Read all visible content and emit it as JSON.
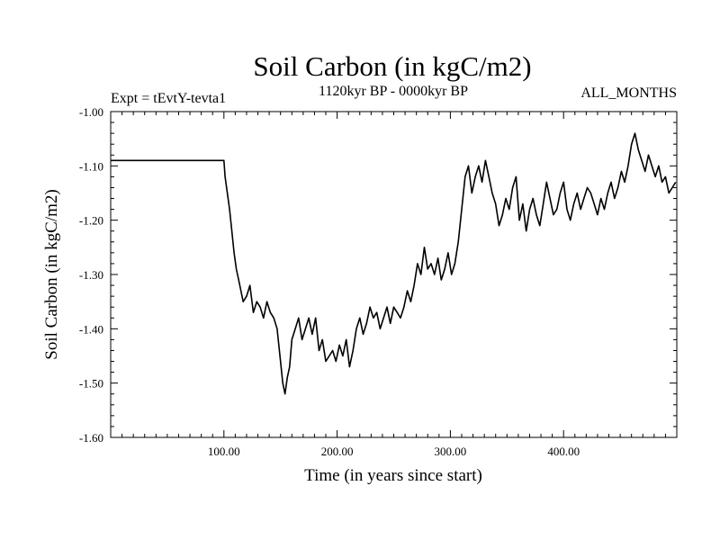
{
  "chart_data": {
    "type": "line",
    "title": "Soil Carbon (in kgC/m2)",
    "subtitle_left": "Expt = tEvtY-tevta1",
    "subtitle_center": "1120kyr BP - 0000kyr BP",
    "subtitle_right": "ALL_MONTHS",
    "xlabel": "Time (in years since start)",
    "ylabel": "Soil Carbon (in kgC/m2)",
    "xlim": [
      0,
      500
    ],
    "ylim": [
      -1.6,
      -1.0
    ],
    "x_ticks": [
      100,
      200,
      300,
      400
    ],
    "x_tick_labels": [
      "100.00",
      "200.00",
      "300.00",
      "400.00"
    ],
    "y_ticks": [
      -1.0,
      -1.1,
      -1.2,
      -1.3,
      -1.4,
      -1.5,
      -1.6
    ],
    "y_tick_labels": [
      "-1.00",
      "-1.10",
      "-1.20",
      "-1.30",
      "-1.40",
      "-1.50",
      "-1.60"
    ],
    "series": [
      {
        "name": "Soil Carbon",
        "color": "#000000",
        "x": [
          0,
          99,
          100,
          101,
          103,
          105,
          107,
          109,
          111,
          113,
          115,
          117,
          120,
          123,
          126,
          129,
          132,
          135,
          138,
          141,
          144,
          147,
          150,
          152,
          154,
          156,
          158,
          160,
          163,
          166,
          169,
          172,
          175,
          178,
          181,
          184,
          187,
          190,
          193,
          196,
          199,
          202,
          205,
          208,
          211,
          214,
          217,
          220,
          223,
          226,
          229,
          232,
          235,
          238,
          241,
          244,
          247,
          250,
          253,
          256,
          259,
          262,
          265,
          268,
          271,
          274,
          277,
          280,
          283,
          286,
          289,
          292,
          295,
          298,
          301,
          304,
          307,
          310,
          313,
          316,
          319,
          322,
          325,
          328,
          331,
          334,
          337,
          340,
          343,
          346,
          349,
          352,
          355,
          358,
          361,
          364,
          367,
          370,
          373,
          376,
          379,
          382,
          385,
          388,
          391,
          394,
          397,
          400,
          403,
          406,
          409,
          412,
          415,
          418,
          421,
          424,
          427,
          430,
          433,
          436,
          439,
          442,
          445,
          448,
          451,
          454,
          457,
          460,
          463,
          466,
          469,
          472,
          475,
          478,
          481,
          484,
          487,
          490,
          493,
          496,
          499
        ],
        "y": [
          -1.09,
          -1.09,
          -1.09,
          -1.12,
          -1.15,
          -1.18,
          -1.22,
          -1.26,
          -1.29,
          -1.31,
          -1.33,
          -1.35,
          -1.34,
          -1.32,
          -1.37,
          -1.35,
          -1.36,
          -1.38,
          -1.35,
          -1.37,
          -1.38,
          -1.4,
          -1.46,
          -1.5,
          -1.52,
          -1.49,
          -1.47,
          -1.42,
          -1.4,
          -1.38,
          -1.42,
          -1.4,
          -1.38,
          -1.41,
          -1.38,
          -1.44,
          -1.42,
          -1.46,
          -1.45,
          -1.44,
          -1.46,
          -1.43,
          -1.45,
          -1.42,
          -1.47,
          -1.44,
          -1.4,
          -1.38,
          -1.41,
          -1.39,
          -1.36,
          -1.38,
          -1.37,
          -1.4,
          -1.38,
          -1.36,
          -1.39,
          -1.36,
          -1.37,
          -1.38,
          -1.36,
          -1.33,
          -1.35,
          -1.32,
          -1.28,
          -1.3,
          -1.25,
          -1.29,
          -1.28,
          -1.3,
          -1.27,
          -1.31,
          -1.29,
          -1.26,
          -1.3,
          -1.28,
          -1.24,
          -1.18,
          -1.12,
          -1.1,
          -1.15,
          -1.12,
          -1.1,
          -1.13,
          -1.09,
          -1.12,
          -1.15,
          -1.17,
          -1.21,
          -1.19,
          -1.16,
          -1.18,
          -1.14,
          -1.12,
          -1.2,
          -1.17,
          -1.22,
          -1.18,
          -1.16,
          -1.19,
          -1.21,
          -1.17,
          -1.13,
          -1.16,
          -1.19,
          -1.18,
          -1.15,
          -1.13,
          -1.18,
          -1.2,
          -1.17,
          -1.15,
          -1.18,
          -1.16,
          -1.14,
          -1.15,
          -1.17,
          -1.19,
          -1.16,
          -1.18,
          -1.15,
          -1.13,
          -1.16,
          -1.14,
          -1.11,
          -1.13,
          -1.1,
          -1.06,
          -1.04,
          -1.07,
          -1.09,
          -1.11,
          -1.08,
          -1.1,
          -1.12,
          -1.1,
          -1.13,
          -1.12,
          -1.15,
          -1.14,
          -1.13
        ]
      }
    ]
  }
}
